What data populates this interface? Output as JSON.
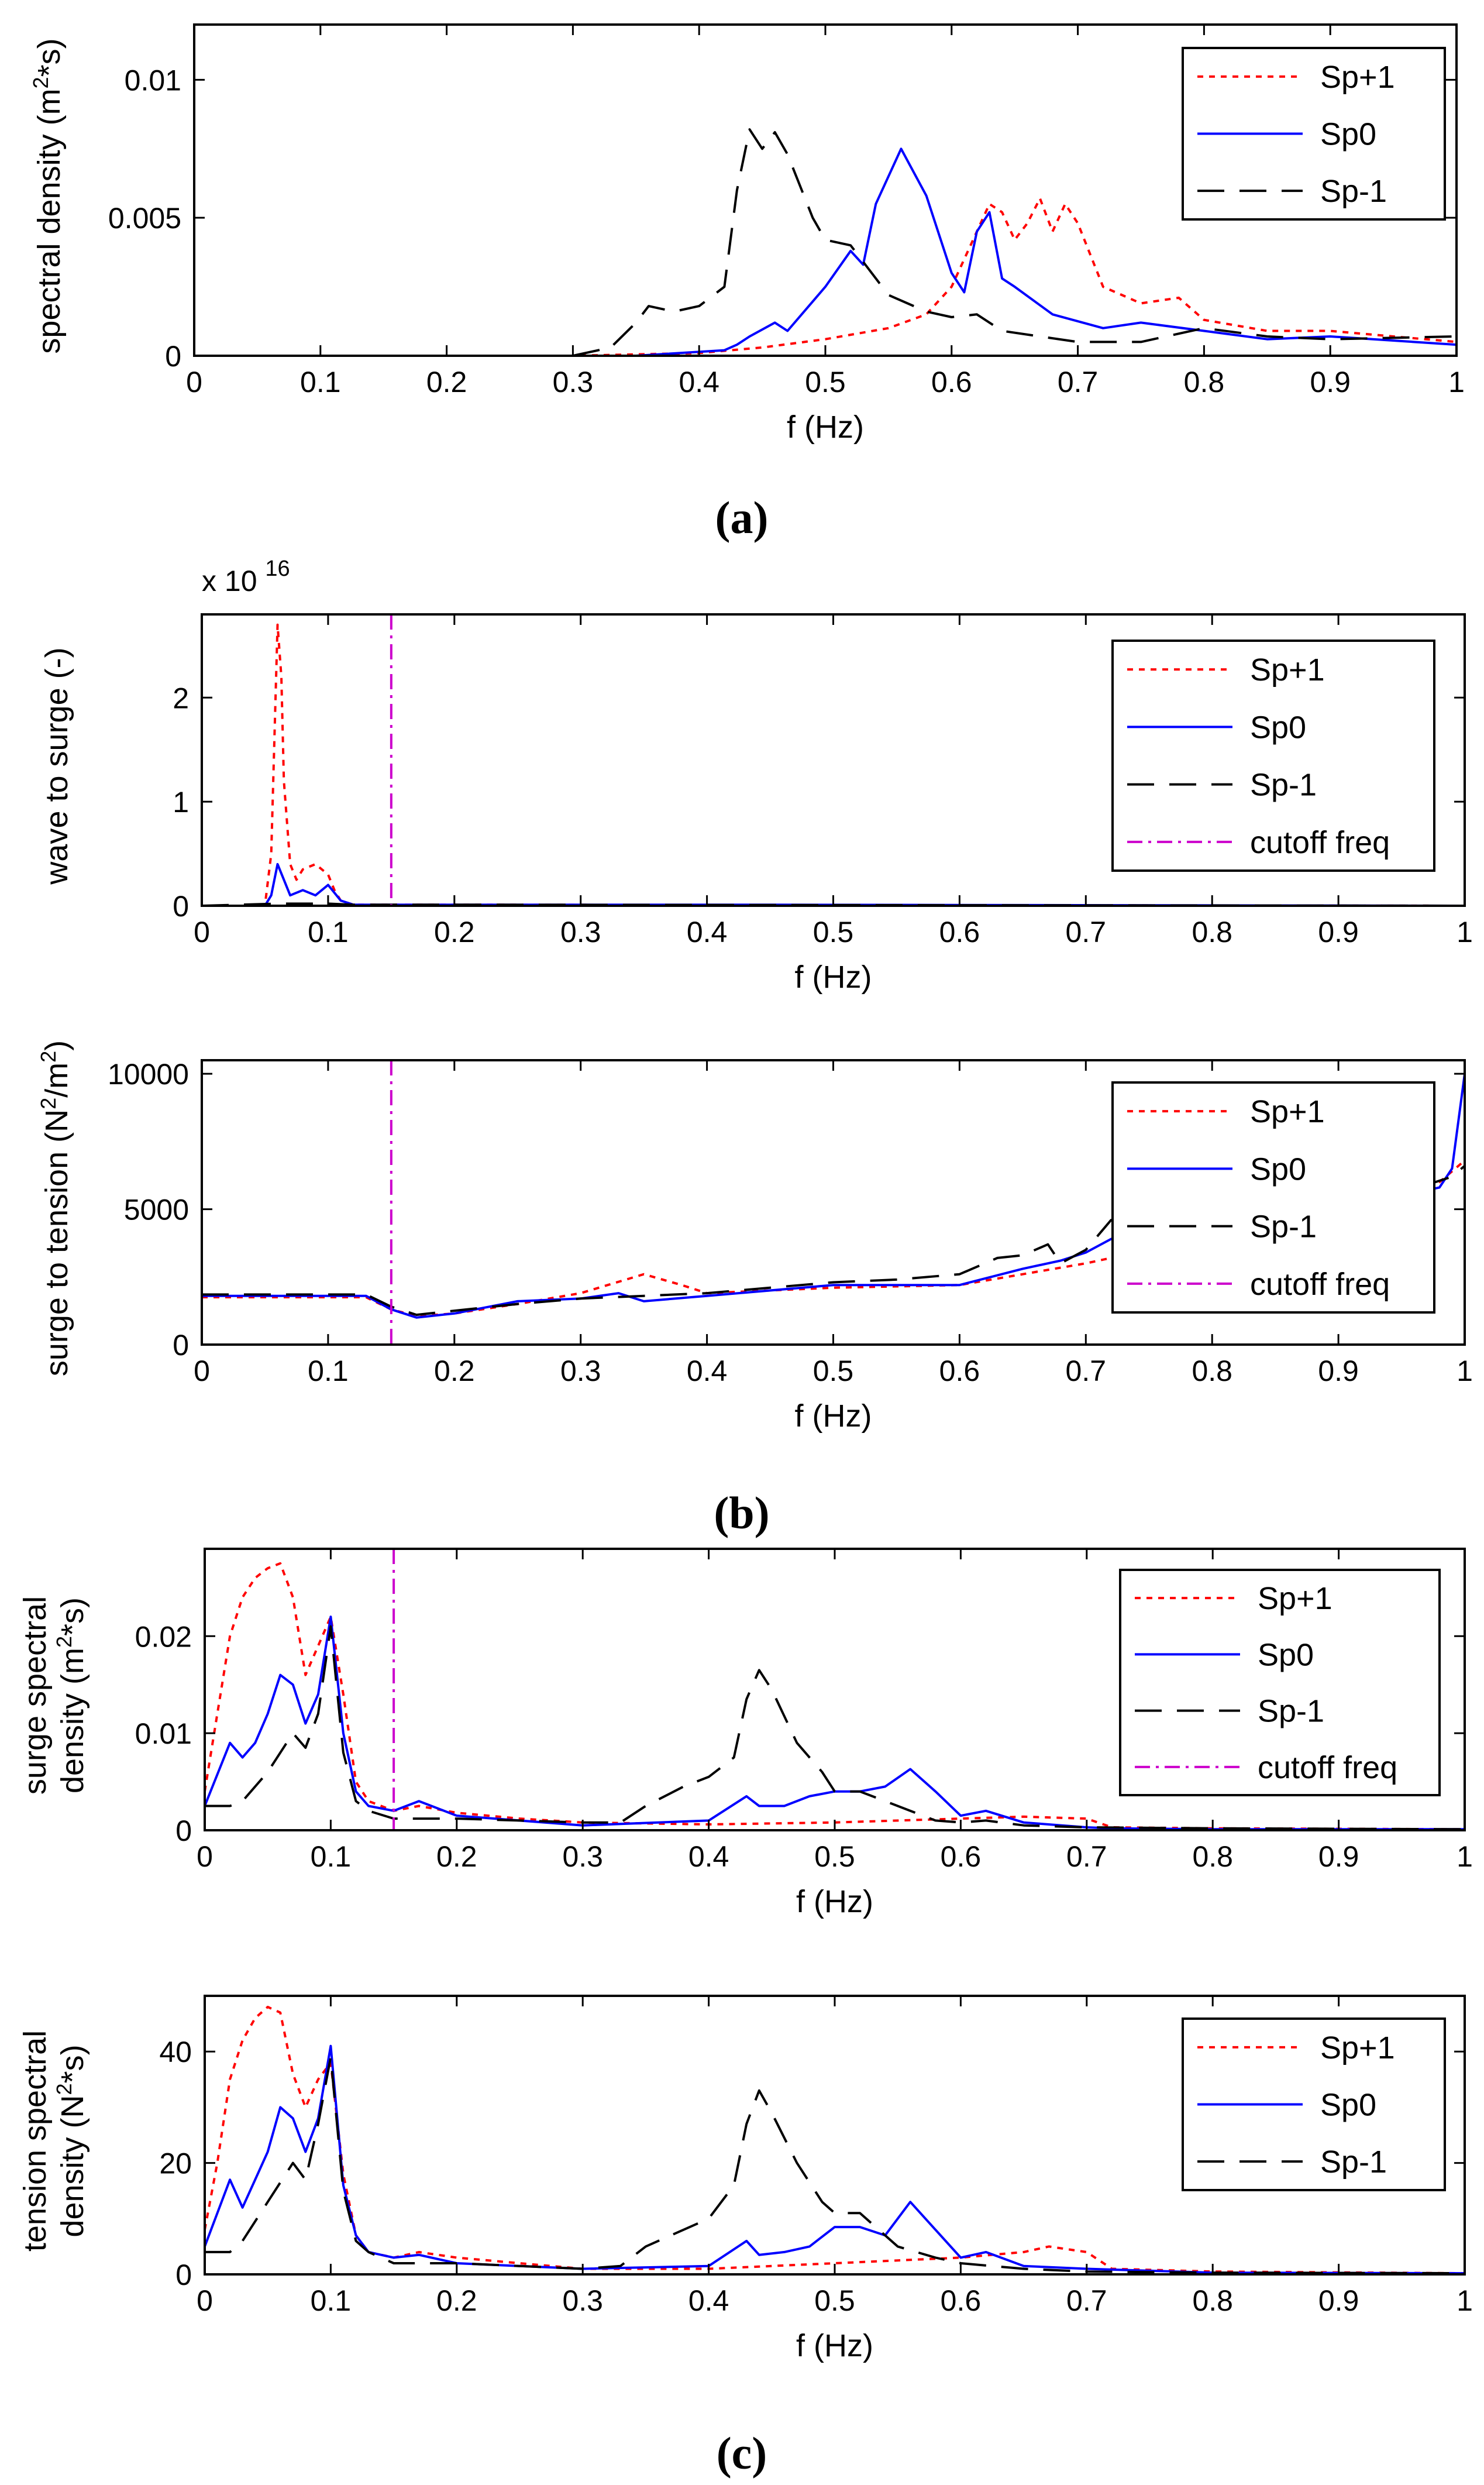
{
  "figure_captions": [
    "(a)",
    "(b)",
    "(c)"
  ],
  "colors": {
    "Sp+1": "#ff0000",
    "Sp0": "#0000ff",
    "Sp-1": "#000000",
    "cutoff freq": "#cc00cc"
  },
  "chart_data": [
    {
      "id": "a",
      "type": "line",
      "xlabel": "f (Hz)",
      "ylabel": "spectral density (m²*s)",
      "xlim": [
        0,
        1
      ],
      "ylim": [
        0,
        0.012
      ],
      "xticks": [
        0,
        0.1,
        0.2,
        0.3,
        0.4,
        0.5,
        0.6,
        0.7,
        0.8,
        0.9,
        1
      ],
      "xtick_labels": [
        "0",
        "0.1",
        "0.2",
        "0.3",
        "0.4",
        "0.5",
        "0.6",
        "0.7",
        "0.8",
        "0.9",
        "1"
      ],
      "yticks": [
        0,
        0.005,
        0.01
      ],
      "ytick_labels": [
        "0",
        "0.005",
        "0.01"
      ],
      "legend_position": "top-right",
      "legend": [
        "Sp+1",
        "Sp0",
        "Sp-1"
      ],
      "series": [
        {
          "name": "Sp+1",
          "x": [
            0,
            0.3,
            0.4,
            0.45,
            0.5,
            0.55,
            0.58,
            0.6,
            0.62,
            0.63,
            0.64,
            0.65,
            0.66,
            0.67,
            0.68,
            0.69,
            0.7,
            0.72,
            0.75,
            0.78,
            0.8,
            0.85,
            0.9,
            1.0
          ],
          "y": [
            0,
            0,
            0.0001,
            0.0003,
            0.0006,
            0.001,
            0.0015,
            0.0025,
            0.0045,
            0.0055,
            0.0052,
            0.0042,
            0.0048,
            0.0057,
            0.0045,
            0.0055,
            0.0048,
            0.0025,
            0.0019,
            0.0021,
            0.0013,
            0.0009,
            0.0009,
            0.0005
          ]
        },
        {
          "name": "Sp0",
          "x": [
            0,
            0.35,
            0.42,
            0.43,
            0.44,
            0.46,
            0.47,
            0.5,
            0.52,
            0.53,
            0.54,
            0.56,
            0.58,
            0.6,
            0.61,
            0.62,
            0.63,
            0.64,
            0.65,
            0.68,
            0.72,
            0.75,
            0.8,
            0.85,
            0.9,
            1.0
          ],
          "y": [
            0,
            0,
            0.0002,
            0.0004,
            0.0007,
            0.0012,
            0.0009,
            0.0025,
            0.0038,
            0.0033,
            0.0055,
            0.0075,
            0.0058,
            0.003,
            0.0023,
            0.0045,
            0.0052,
            0.0028,
            0.0025,
            0.0015,
            0.001,
            0.0012,
            0.0009,
            0.0006,
            0.0007,
            0.0004
          ]
        },
        {
          "name": "Sp-1",
          "x": [
            0,
            0.3,
            0.33,
            0.35,
            0.36,
            0.38,
            0.4,
            0.42,
            0.43,
            0.44,
            0.45,
            0.46,
            0.47,
            0.49,
            0.5,
            0.52,
            0.55,
            0.58,
            0.6,
            0.62,
            0.64,
            0.7,
            0.75,
            0.8,
            0.85,
            0.9,
            1.0
          ],
          "y": [
            0,
            0,
            0.0003,
            0.0012,
            0.0018,
            0.0016,
            0.0018,
            0.0025,
            0.006,
            0.0082,
            0.0075,
            0.0081,
            0.0073,
            0.005,
            0.0042,
            0.004,
            0.0022,
            0.0016,
            0.0014,
            0.0015,
            0.0009,
            0.0005,
            0.0005,
            0.001,
            0.0007,
            0.0006,
            0.0007
          ]
        }
      ]
    },
    {
      "id": "b1",
      "type": "line",
      "xlabel": "f (Hz)",
      "ylabel": "wave to surge (-)",
      "y_multiplier_label": "x 10",
      "y_multiplier_exponent": "16",
      "xlim": [
        0,
        1
      ],
      "ylim": [
        0,
        2.8
      ],
      "xticks": [
        0,
        0.1,
        0.2,
        0.3,
        0.4,
        0.5,
        0.6,
        0.7,
        0.8,
        0.9,
        1
      ],
      "xtick_labels": [
        "0",
        "0.1",
        "0.2",
        "0.3",
        "0.4",
        "0.5",
        "0.6",
        "0.7",
        "0.8",
        "0.9",
        "1"
      ],
      "yticks": [
        0,
        1,
        2
      ],
      "ytick_labels": [
        "0",
        "1",
        "2"
      ],
      "cutoff_x": 0.15,
      "legend_position": "top-right",
      "legend": [
        "Sp+1",
        "Sp0",
        "Sp-1",
        "cutoff freq"
      ],
      "series": [
        {
          "name": "Sp+1",
          "x": [
            0,
            0.05,
            0.055,
            0.06,
            0.063,
            0.065,
            0.07,
            0.075,
            0.08,
            0.09,
            0.1,
            0.105,
            0.11,
            0.12,
            0.2,
            1.0
          ],
          "y": [
            0,
            0,
            0.5,
            2.7,
            2.2,
            1.2,
            0.4,
            0.25,
            0.35,
            0.4,
            0.3,
            0.15,
            0.05,
            0.01,
            0.01,
            0
          ]
        },
        {
          "name": "Sp0",
          "x": [
            0,
            0.05,
            0.055,
            0.06,
            0.065,
            0.07,
            0.08,
            0.09,
            0.1,
            0.11,
            0.12,
            0.45,
            1.0
          ],
          "y": [
            0,
            0,
            0.1,
            0.4,
            0.25,
            0.1,
            0.15,
            0.1,
            0.2,
            0.05,
            0.01,
            0.01,
            0
          ]
        },
        {
          "name": "Sp-1",
          "x": [
            0,
            0.06,
            0.1,
            0.12,
            0.2,
            1.0
          ],
          "y": [
            0,
            0.02,
            0.02,
            0.01,
            0.01,
            0
          ]
        }
      ]
    },
    {
      "id": "b2",
      "type": "line",
      "xlabel": "f (Hz)",
      "ylabel": "surge to tension (N²/m²)",
      "xlim": [
        0,
        1
      ],
      "ylim": [
        0,
        10500
      ],
      "xticks": [
        0,
        0.1,
        0.2,
        0.3,
        0.4,
        0.5,
        0.6,
        0.7,
        0.8,
        0.9,
        1
      ],
      "xtick_labels": [
        "0",
        "0.1",
        "0.2",
        "0.3",
        "0.4",
        "0.5",
        "0.6",
        "0.7",
        "0.8",
        "0.9",
        "1"
      ],
      "yticks": [
        0,
        5000,
        10000
      ],
      "ytick_labels": [
        "0",
        "5000",
        "10000"
      ],
      "cutoff_x": 0.15,
      "legend_position": "top-right",
      "legend": [
        "Sp+1",
        "Sp0",
        "Sp-1",
        "cutoff freq"
      ],
      "series": [
        {
          "name": "Sp+1",
          "x": [
            0,
            0.13,
            0.15,
            0.17,
            0.2,
            0.25,
            0.3,
            0.35,
            0.38,
            0.4,
            0.5,
            0.6,
            0.65,
            0.7,
            0.75,
            0.8,
            0.85,
            0.9,
            0.95,
            0.98,
            1.0
          ],
          "y": [
            1750,
            1750,
            1300,
            1050,
            1150,
            1500,
            1900,
            2600,
            2200,
            1900,
            2100,
            2200,
            2600,
            3000,
            3500,
            4000,
            4300,
            4600,
            5000,
            6000,
            6800
          ]
        },
        {
          "name": "Sp0",
          "x": [
            0,
            0.13,
            0.15,
            0.17,
            0.2,
            0.25,
            0.3,
            0.33,
            0.35,
            0.4,
            0.5,
            0.6,
            0.65,
            0.68,
            0.7,
            0.72,
            0.75,
            0.8,
            0.85,
            0.9,
            0.95,
            0.98,
            0.99,
            1.0
          ],
          "y": [
            1800,
            1800,
            1300,
            1000,
            1150,
            1600,
            1700,
            1900,
            1600,
            1800,
            2200,
            2200,
            2800,
            3100,
            3400,
            3900,
            4200,
            4500,
            4800,
            5200,
            5500,
            5800,
            6500,
            10000
          ]
        },
        {
          "name": "Sp-1",
          "x": [
            0,
            0.13,
            0.15,
            0.17,
            0.2,
            0.25,
            0.3,
            0.35,
            0.4,
            0.5,
            0.55,
            0.6,
            0.63,
            0.65,
            0.67,
            0.68,
            0.7,
            0.72,
            0.75,
            0.8,
            0.85,
            0.9,
            0.95,
            0.99,
            1.0
          ],
          "y": [
            1850,
            1850,
            1400,
            1100,
            1250,
            1500,
            1700,
            1800,
            1900,
            2300,
            2400,
            2600,
            3200,
            3300,
            3700,
            3000,
            3500,
            4600,
            4400,
            4700,
            5000,
            5300,
            5600,
            6200,
            6600
          ]
        }
      ]
    },
    {
      "id": "c1",
      "type": "line",
      "xlabel": "f (Hz)",
      "ylabel": "surge spectral density (m²*s)",
      "xlim": [
        0,
        1
      ],
      "ylim": [
        0,
        0.029
      ],
      "xticks": [
        0,
        0.1,
        0.2,
        0.3,
        0.4,
        0.5,
        0.6,
        0.7,
        0.8,
        0.9,
        1
      ],
      "xtick_labels": [
        "0",
        "0.1",
        "0.2",
        "0.3",
        "0.4",
        "0.5",
        "0.6",
        "0.7",
        "0.8",
        "0.9",
        "1"
      ],
      "yticks": [
        0,
        0.01,
        0.02
      ],
      "ytick_labels": [
        "0",
        "0.01",
        "0.02"
      ],
      "cutoff_x": 0.15,
      "legend_position": "top-right",
      "legend": [
        "Sp+1",
        "Sp0",
        "Sp-1",
        "cutoff freq"
      ],
      "series": [
        {
          "name": "Sp+1",
          "x": [
            0,
            0.01,
            0.02,
            0.03,
            0.04,
            0.05,
            0.06,
            0.07,
            0.08,
            0.09,
            0.1,
            0.11,
            0.12,
            0.13,
            0.15,
            0.17,
            0.2,
            0.25,
            0.3,
            0.4,
            0.5,
            0.6,
            0.65,
            0.7,
            0.72,
            0.8,
            1.0
          ],
          "y": [
            0.004,
            0.012,
            0.02,
            0.024,
            0.026,
            0.027,
            0.0275,
            0.024,
            0.016,
            0.019,
            0.022,
            0.014,
            0.005,
            0.003,
            0.002,
            0.0025,
            0.0018,
            0.0012,
            0.0008,
            0.0006,
            0.0008,
            0.0012,
            0.0014,
            0.0012,
            0.0003,
            0.0002,
            0.0001
          ]
        },
        {
          "name": "Sp0",
          "x": [
            0,
            0.02,
            0.03,
            0.04,
            0.05,
            0.06,
            0.07,
            0.08,
            0.09,
            0.1,
            0.11,
            0.12,
            0.13,
            0.15,
            0.17,
            0.2,
            0.3,
            0.4,
            0.43,
            0.44,
            0.46,
            0.48,
            0.5,
            0.52,
            0.54,
            0.56,
            0.58,
            0.6,
            0.62,
            0.65,
            0.7,
            0.72,
            0.8,
            1.0
          ],
          "y": [
            0.0025,
            0.009,
            0.0075,
            0.009,
            0.012,
            0.016,
            0.015,
            0.011,
            0.014,
            0.022,
            0.01,
            0.004,
            0.0025,
            0.002,
            0.003,
            0.0015,
            0.0005,
            0.001,
            0.0035,
            0.0025,
            0.0025,
            0.0035,
            0.004,
            0.004,
            0.0045,
            0.0063,
            0.004,
            0.0015,
            0.002,
            0.0008,
            0.0003,
            0.0002,
            0.0001,
            0.0001
          ]
        },
        {
          "name": "Sp-1",
          "x": [
            0,
            0.02,
            0.03,
            0.05,
            0.07,
            0.08,
            0.09,
            0.1,
            0.11,
            0.12,
            0.13,
            0.15,
            0.2,
            0.25,
            0.3,
            0.33,
            0.35,
            0.38,
            0.4,
            0.42,
            0.43,
            0.44,
            0.45,
            0.47,
            0.49,
            0.5,
            0.52,
            0.55,
            0.58,
            0.6,
            0.62,
            0.65,
            0.7,
            0.8,
            1.0
          ],
          "y": [
            0.0025,
            0.0025,
            0.003,
            0.006,
            0.01,
            0.0085,
            0.012,
            0.021,
            0.008,
            0.003,
            0.002,
            0.0012,
            0.0012,
            0.001,
            0.0008,
            0.0008,
            0.0025,
            0.0045,
            0.0055,
            0.0075,
            0.0135,
            0.0165,
            0.0145,
            0.009,
            0.006,
            0.004,
            0.004,
            0.0025,
            0.001,
            0.0008,
            0.001,
            0.0005,
            0.0003,
            0.0002,
            0.0001
          ]
        }
      ]
    },
    {
      "id": "c2",
      "type": "line",
      "xlabel": "f (Hz)",
      "ylabel": "tension spectral density (N²*s)",
      "xlim": [
        0,
        1
      ],
      "ylim": [
        0,
        50
      ],
      "xticks": [
        0,
        0.1,
        0.2,
        0.3,
        0.4,
        0.5,
        0.6,
        0.7,
        0.8,
        0.9,
        1
      ],
      "xtick_labels": [
        "0",
        "0.1",
        "0.2",
        "0.3",
        "0.4",
        "0.5",
        "0.6",
        "0.7",
        "0.8",
        "0.9",
        "1"
      ],
      "yticks": [
        0,
        20,
        40
      ],
      "ytick_labels": [
        "0",
        "20",
        "40"
      ],
      "legend_position": "top-right",
      "legend": [
        "Sp+1",
        "Sp0",
        "Sp-1"
      ],
      "series": [
        {
          "name": "Sp+1",
          "x": [
            0,
            0.01,
            0.02,
            0.03,
            0.04,
            0.05,
            0.06,
            0.07,
            0.08,
            0.09,
            0.1,
            0.11,
            0.12,
            0.13,
            0.15,
            0.17,
            0.2,
            0.25,
            0.3,
            0.4,
            0.5,
            0.6,
            0.65,
            0.67,
            0.7,
            0.72,
            0.8,
            1.0
          ],
          "y": [
            8,
            20,
            35,
            42,
            46,
            48,
            47,
            36,
            30,
            35,
            38,
            18,
            7,
            4,
            3,
            4,
            3,
            2,
            1,
            1,
            2,
            3,
            4,
            5,
            4,
            1,
            0.5,
            0.2
          ]
        },
        {
          "name": "Sp0",
          "x": [
            0,
            0.02,
            0.03,
            0.04,
            0.05,
            0.06,
            0.07,
            0.08,
            0.09,
            0.1,
            0.11,
            0.12,
            0.13,
            0.15,
            0.17,
            0.2,
            0.3,
            0.4,
            0.43,
            0.44,
            0.46,
            0.48,
            0.5,
            0.52,
            0.54,
            0.56,
            0.58,
            0.6,
            0.62,
            0.65,
            0.7,
            0.8,
            1.0
          ],
          "y": [
            5,
            17,
            12,
            17,
            22,
            30,
            28,
            22,
            28,
            41,
            16,
            7,
            4,
            3,
            3.5,
            2,
            1,
            1.5,
            6,
            3.5,
            4,
            5,
            8.5,
            8.5,
            7,
            13,
            8,
            3,
            4,
            1.5,
            1,
            0.3,
            0.2
          ]
        },
        {
          "name": "Sp-1",
          "x": [
            0,
            0.02,
            0.03,
            0.05,
            0.07,
            0.08,
            0.09,
            0.1,
            0.11,
            0.12,
            0.13,
            0.15,
            0.2,
            0.3,
            0.33,
            0.35,
            0.38,
            0.4,
            0.42,
            0.43,
            0.44,
            0.45,
            0.47,
            0.49,
            0.5,
            0.52,
            0.55,
            0.58,
            0.6,
            0.65,
            0.7,
            0.8,
            1.0
          ],
          "y": [
            4,
            4,
            6,
            13,
            20,
            17,
            27,
            39,
            15,
            6,
            4,
            2,
            2,
            1,
            1.5,
            5,
            8,
            10,
            16,
            27,
            33,
            29,
            20,
            13,
            11,
            11,
            5,
            3,
            2,
            1,
            0.5,
            0.3,
            0.2
          ]
        }
      ]
    }
  ]
}
